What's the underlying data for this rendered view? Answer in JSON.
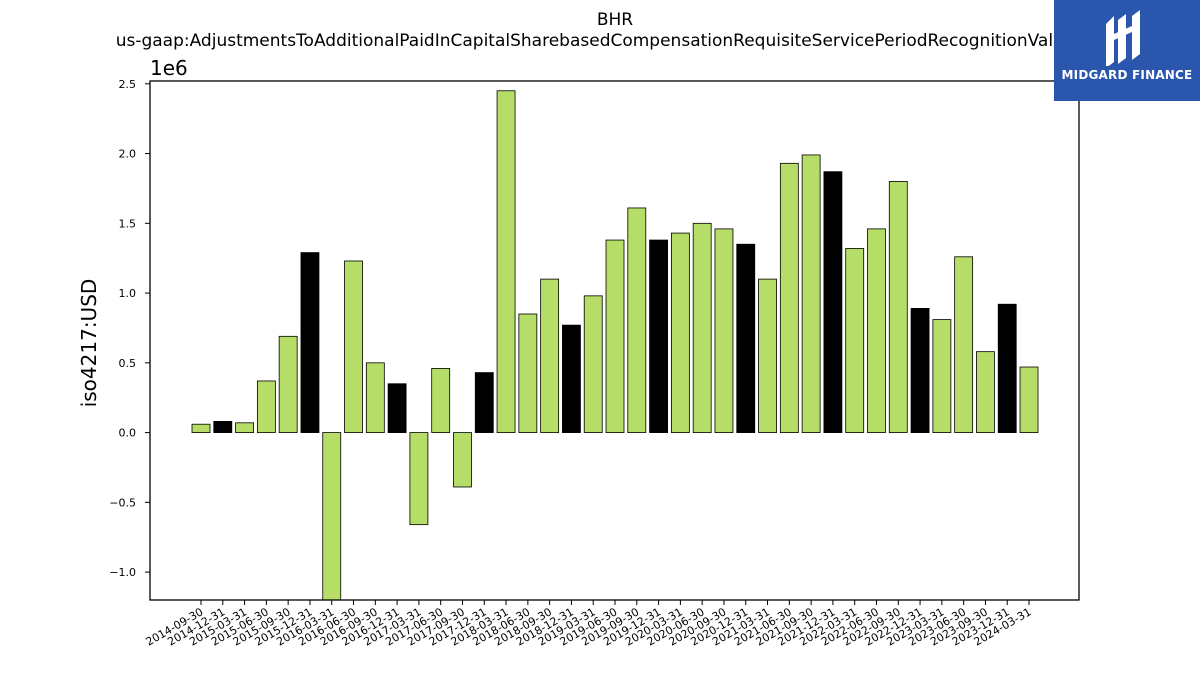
{
  "logo": {
    "text": "MIDGARD FINANCE",
    "color": "#2a56ad"
  },
  "chart_data": {
    "type": "bar",
    "title": "BHR",
    "subtitle": "us-gaap:AdjustmentsToAdditionalPaidInCapitalSharebasedCompensationRequisiteServicePeriodRecognitionValue",
    "ylabel": "iso4217:USD",
    "y_offset_label": "1e6",
    "ylim": [
      -1.2,
      2.52
    ],
    "yticks": [
      -1.0,
      -0.5,
      0.0,
      0.5,
      1.0,
      1.5,
      2.0,
      2.5
    ],
    "ytick_labels": [
      "−1.0",
      "−0.5",
      "0.0",
      "0.5",
      "1.0",
      "1.5",
      "2.0",
      "2.5"
    ],
    "grid": false,
    "colors": {
      "default": "#b5dd67",
      "highlight": "#000000",
      "edge": "#000000"
    },
    "categories": [
      "2014-09-30",
      "2014-12-31",
      "2015-03-31",
      "2015-06-30",
      "2015-09-30",
      "2015-12-31",
      "2016-03-31",
      "2016-06-30",
      "2016-09-30",
      "2016-12-31",
      "2017-03-31",
      "2017-06-30",
      "2017-09-30",
      "2017-12-31",
      "2018-03-31",
      "2018-06-30",
      "2018-09-30",
      "2018-12-31",
      "2019-03-31",
      "2019-06-30",
      "2019-09-30",
      "2019-12-31",
      "2020-03-31",
      "2020-06-30",
      "2020-09-30",
      "2020-12-31",
      "2021-03-31",
      "2021-06-30",
      "2021-09-30",
      "2021-12-31",
      "2022-03-31",
      "2022-06-30",
      "2022-09-30",
      "2022-12-31",
      "2023-03-31",
      "2023-06-30",
      "2023-09-30",
      "2023-12-31",
      "2024-03-31"
    ],
    "values": [
      0.06,
      0.08,
      0.07,
      0.37,
      0.69,
      1.29,
      -1.2,
      1.23,
      0.5,
      0.35,
      -0.66,
      0.46,
      -0.39,
      0.43,
      2.45,
      0.85,
      1.1,
      0.77,
      0.98,
      1.38,
      1.61,
      1.38,
      1.43,
      1.5,
      1.46,
      1.35,
      1.1,
      1.93,
      1.99,
      1.87,
      1.32,
      1.46,
      1.8,
      0.89,
      0.81,
      1.26,
      0.58,
      0.92,
      0.47
    ],
    "highlight": [
      false,
      true,
      false,
      false,
      false,
      true,
      false,
      false,
      false,
      true,
      false,
      false,
      false,
      true,
      false,
      false,
      false,
      true,
      false,
      false,
      false,
      true,
      false,
      false,
      false,
      true,
      false,
      false,
      false,
      true,
      false,
      false,
      false,
      true,
      false,
      false,
      false,
      true,
      false
    ]
  }
}
